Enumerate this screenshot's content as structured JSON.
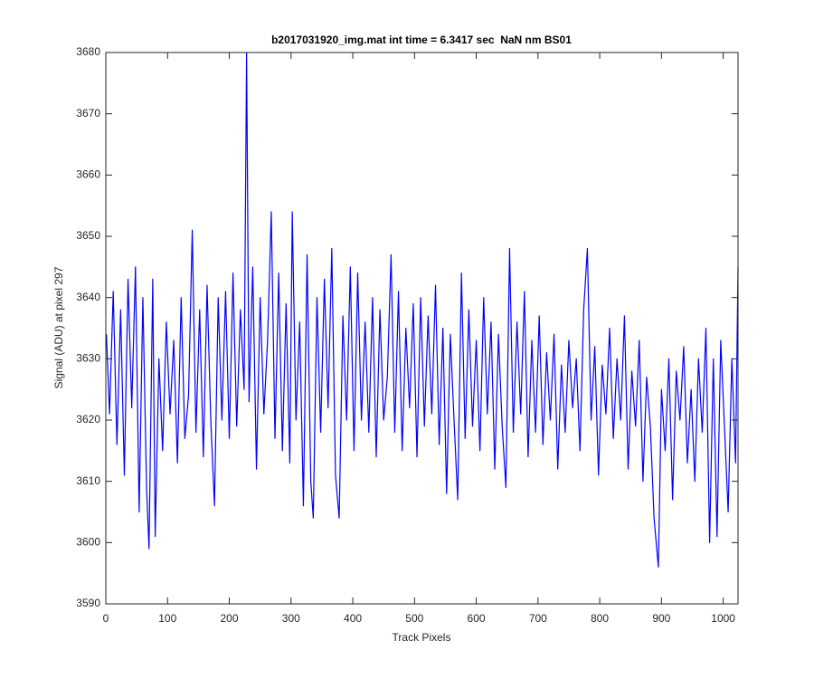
{
  "chart_data": {
    "type": "line",
    "title": "b2017031920_img.mat int time = 6.3417 sec  NaN nm BS01",
    "x_label": "Track Pixels",
    "y_label": "Signal (ADU) at pixel 297",
    "x": [
      1,
      6,
      12,
      18,
      24,
      30,
      36,
      42,
      48,
      54,
      60,
      66,
      70,
      76,
      80,
      86,
      92,
      98,
      104,
      110,
      116,
      122,
      128,
      134,
      140,
      146,
      152,
      158,
      164,
      170,
      176,
      182,
      188,
      194,
      200,
      206,
      212,
      218,
      224,
      228,
      232,
      238,
      244,
      250,
      256,
      262,
      268,
      274,
      280,
      286,
      292,
      298,
      302,
      308,
      314,
      320,
      326,
      332,
      336,
      342,
      348,
      354,
      360,
      366,
      372,
      378,
      384,
      390,
      396,
      402,
      408,
      414,
      420,
      426,
      432,
      438,
      444,
      450,
      456,
      462,
      468,
      474,
      480,
      486,
      492,
      498,
      504,
      510,
      516,
      522,
      528,
      534,
      540,
      546,
      552,
      558,
      564,
      570,
      576,
      582,
      588,
      594,
      600,
      606,
      612,
      618,
      624,
      630,
      636,
      642,
      648,
      654,
      660,
      666,
      672,
      678,
      684,
      690,
      696,
      702,
      708,
      714,
      720,
      726,
      732,
      738,
      744,
      750,
      756,
      762,
      768,
      774,
      780,
      786,
      792,
      798,
      804,
      810,
      816,
      822,
      828,
      834,
      840,
      846,
      852,
      858,
      864,
      870,
      876,
      882,
      888,
      895,
      900,
      906,
      912,
      918,
      924,
      930,
      936,
      942,
      948,
      954,
      960,
      966,
      972,
      978,
      984,
      990,
      996,
      1002,
      1008,
      1014,
      1020,
      1024
    ],
    "series": [
      {
        "color": "#0000ff",
        "values": [
          3634,
          3621,
          3641,
          3616,
          3638,
          3611,
          3643,
          3622,
          3645,
          3605,
          3640,
          3609,
          3599,
          3643,
          3601,
          3630,
          3615,
          3636,
          3621,
          3633,
          3613,
          3640,
          3617,
          3624,
          3651,
          3618,
          3638,
          3614,
          3642,
          3620,
          3606,
          3640,
          3620,
          3641,
          3617,
          3644,
          3619,
          3638,
          3625,
          3680,
          3623,
          3645,
          3612,
          3640,
          3621,
          3633,
          3654,
          3617,
          3644,
          3615,
          3639,
          3613,
          3654,
          3620,
          3636,
          3606,
          3647,
          3610,
          3604,
          3640,
          3618,
          3643,
          3622,
          3648,
          3611,
          3604,
          3637,
          3620,
          3645,
          3615,
          3644,
          3620,
          3636,
          3618,
          3640,
          3614,
          3638,
          3620,
          3627,
          3647,
          3618,
          3641,
          3615,
          3635,
          3622,
          3639,
          3614,
          3640,
          3619,
          3637,
          3621,
          3642,
          3616,
          3635,
          3608,
          3634,
          3620,
          3607,
          3644,
          3617,
          3638,
          3619,
          3633,
          3615,
          3640,
          3621,
          3636,
          3612,
          3634,
          3619,
          3609,
          3648,
          3618,
          3636,
          3621,
          3641,
          3614,
          3633,
          3618,
          3637,
          3616,
          3631,
          3620,
          3634,
          3612,
          3629,
          3618,
          3633,
          3622,
          3630,
          3615,
          3638,
          3648,
          3620,
          3632,
          3611,
          3629,
          3621,
          3635,
          3617,
          3630,
          3620,
          3637,
          3612,
          3628,
          3619,
          3633,
          3610,
          3627,
          3619,
          3604,
          3596,
          3625,
          3615,
          3630,
          3607,
          3628,
          3620,
          3632,
          3613,
          3625,
          3610,
          3630,
          3618,
          3635,
          3600,
          3630,
          3601,
          3633,
          3619,
          3605,
          3630,
          3613,
          3645
        ]
      }
    ],
    "xlim": [
      0,
      1024
    ],
    "ylim": [
      3590,
      3680
    ],
    "xticks": [
      0,
      100,
      200,
      300,
      400,
      500,
      600,
      700,
      800,
      900,
      1000
    ],
    "yticks": [
      3590,
      3600,
      3610,
      3620,
      3630,
      3640,
      3650,
      3660,
      3670,
      3680
    ],
    "grid": false
  }
}
